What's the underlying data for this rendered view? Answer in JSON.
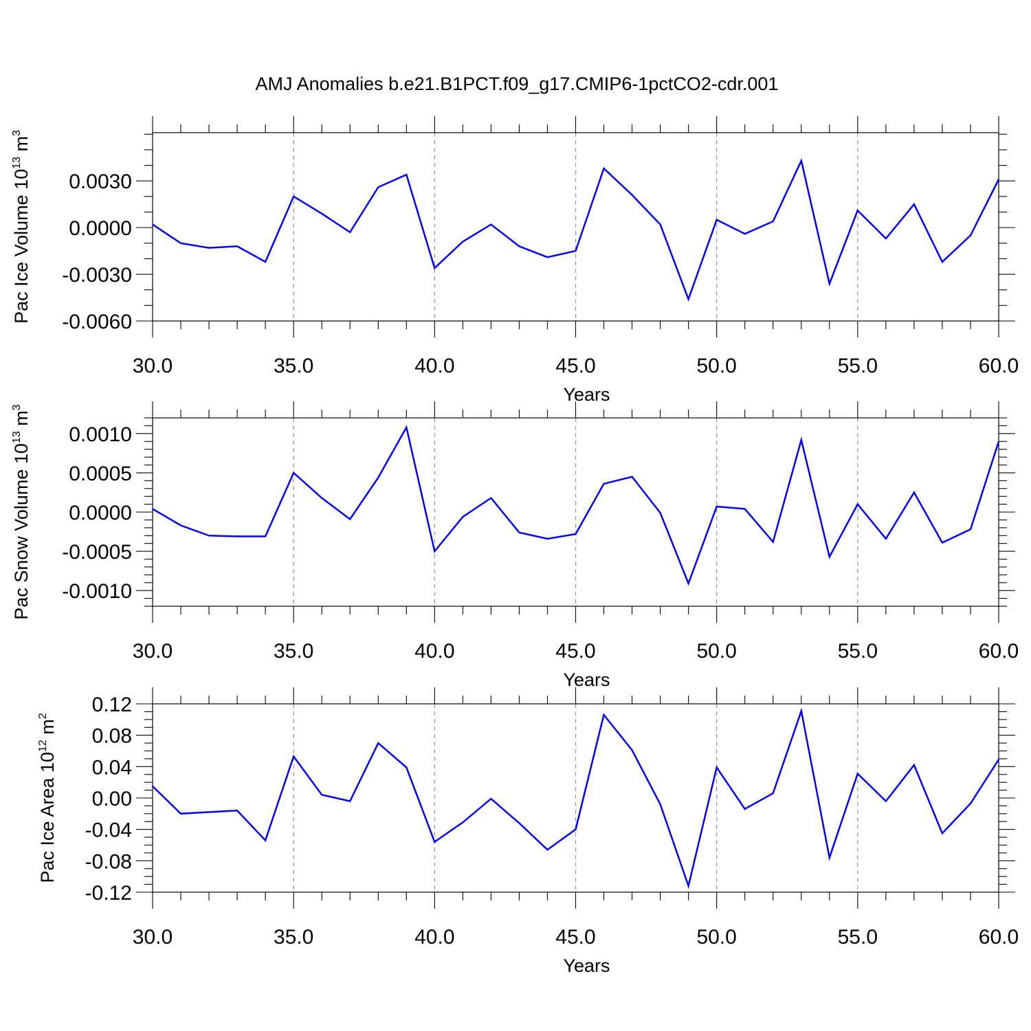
{
  "title": "AMJ Anomalies b.e21.B1PCT.f09_g17.CMIP6-1pctCO2-cdr.001",
  "colors": {
    "line": "#0000ff",
    "grid": "#999999",
    "axes": "#000000"
  },
  "chart_data": [
    {
      "type": "line",
      "ylabel": {
        "base": "Pac Ice Volume 10",
        "exp": "13",
        "unit": " m",
        "unit_exp": "3"
      },
      "xlabel": "Years",
      "xlim": [
        30,
        60
      ],
      "ylim": [
        -0.006,
        0.0061
      ],
      "x_ticks": [
        "30.0",
        "35.0",
        "40.0",
        "45.0",
        "50.0",
        "55.0",
        "60.0"
      ],
      "y_ticks": [
        {
          "value": 0.003,
          "label": "0.0030"
        },
        {
          "value": 0.0,
          "label": "0.0000"
        },
        {
          "value": -0.003,
          "label": "-0.0030"
        },
        {
          "value": -0.006,
          "label": "-0.0060"
        }
      ],
      "y_minor_step": 0.001,
      "grid": "x-dashed",
      "x": [
        30,
        31,
        32,
        33,
        34,
        35,
        36,
        37,
        38,
        39,
        40,
        41,
        42,
        43,
        44,
        45,
        46,
        47,
        48,
        49,
        50,
        51,
        52,
        53,
        54,
        55,
        56,
        57,
        58,
        59,
        60
      ],
      "values": [
        0.0002,
        -0.001,
        -0.0013,
        -0.0012,
        -0.0022,
        0.002,
        0.0009,
        -0.0003,
        0.0026,
        0.0034,
        -0.0026,
        -0.0009,
        0.0002,
        -0.0012,
        -0.0019,
        -0.0015,
        0.0038,
        0.0021,
        0.0002,
        -0.0046,
        0.0005,
        -0.0004,
        0.0004,
        0.0043,
        -0.0036,
        0.0011,
        -0.0007,
        0.0015,
        -0.0022,
        -0.0005,
        0.0031
      ]
    },
    {
      "type": "line",
      "ylabel": {
        "base": "Pac Snow Volume 10",
        "exp": "13",
        "unit": " m",
        "unit_exp": "3"
      },
      "xlabel": "Years",
      "xlim": [
        30,
        60
      ],
      "ylim": [
        -0.0012,
        0.0012
      ],
      "x_ticks": [
        "30.0",
        "35.0",
        "40.0",
        "45.0",
        "50.0",
        "55.0",
        "60.0"
      ],
      "y_ticks": [
        {
          "value": 0.001,
          "label": "0.0010"
        },
        {
          "value": 0.0005,
          "label": "0.0005"
        },
        {
          "value": 0.0,
          "label": "0.0000"
        },
        {
          "value": -0.0005,
          "label": "-0.0005"
        },
        {
          "value": -0.001,
          "label": "-0.0010"
        }
      ],
      "y_minor_step": 0.0001,
      "grid": "x-dashed",
      "x": [
        30,
        31,
        32,
        33,
        34,
        35,
        36,
        37,
        38,
        39,
        40,
        41,
        42,
        43,
        44,
        45,
        46,
        47,
        48,
        49,
        50,
        51,
        52,
        53,
        54,
        55,
        56,
        57,
        58,
        59,
        60
      ],
      "values": [
        4e-05,
        -0.00017,
        -0.0003,
        -0.00031,
        -0.00031,
        0.0005,
        0.00018,
        -9e-05,
        0.00044,
        0.00108,
        -0.0005,
        -6e-05,
        0.00018,
        -0.00026,
        -0.00034,
        -0.00028,
        0.00036,
        0.00045,
        -1e-05,
        -0.00091,
        7e-05,
        4e-05,
        -0.00038,
        0.00092,
        -0.00057,
        0.0001,
        -0.00034,
        0.00025,
        -0.00039,
        -0.00022,
        0.0009
      ]
    },
    {
      "type": "line",
      "ylabel": {
        "base": "Pac Ice Area 10",
        "exp": "12",
        "unit": " m",
        "unit_exp": "2"
      },
      "xlabel": "Years",
      "xlim": [
        30,
        60
      ],
      "ylim": [
        -0.12,
        0.12
      ],
      "x_ticks": [
        "30.0",
        "35.0",
        "40.0",
        "45.0",
        "50.0",
        "55.0",
        "60.0"
      ],
      "y_ticks": [
        {
          "value": 0.12,
          "label": "0.12"
        },
        {
          "value": 0.08,
          "label": "0.08"
        },
        {
          "value": 0.04,
          "label": "0.04"
        },
        {
          "value": 0.0,
          "label": "0.00"
        },
        {
          "value": -0.04,
          "label": "-0.04"
        },
        {
          "value": -0.08,
          "label": "-0.08"
        },
        {
          "value": -0.12,
          "label": "-0.12"
        }
      ],
      "y_minor_step": 0.01,
      "grid": "x-dashed",
      "x": [
        30,
        31,
        32,
        33,
        34,
        35,
        36,
        37,
        38,
        39,
        40,
        41,
        42,
        43,
        44,
        45,
        46,
        47,
        48,
        49,
        50,
        51,
        52,
        53,
        54,
        55,
        56,
        57,
        58,
        59,
        60
      ],
      "values": [
        0.015,
        -0.02,
        -0.018,
        -0.016,
        -0.054,
        0.053,
        0.004,
        -0.004,
        0.07,
        0.039,
        -0.056,
        -0.031,
        -0.001,
        -0.032,
        -0.066,
        -0.04,
        0.106,
        0.061,
        -0.008,
        -0.112,
        0.039,
        -0.014,
        0.006,
        0.111,
        -0.076,
        0.031,
        -0.004,
        0.042,
        -0.045,
        -0.007,
        0.049
      ]
    }
  ]
}
